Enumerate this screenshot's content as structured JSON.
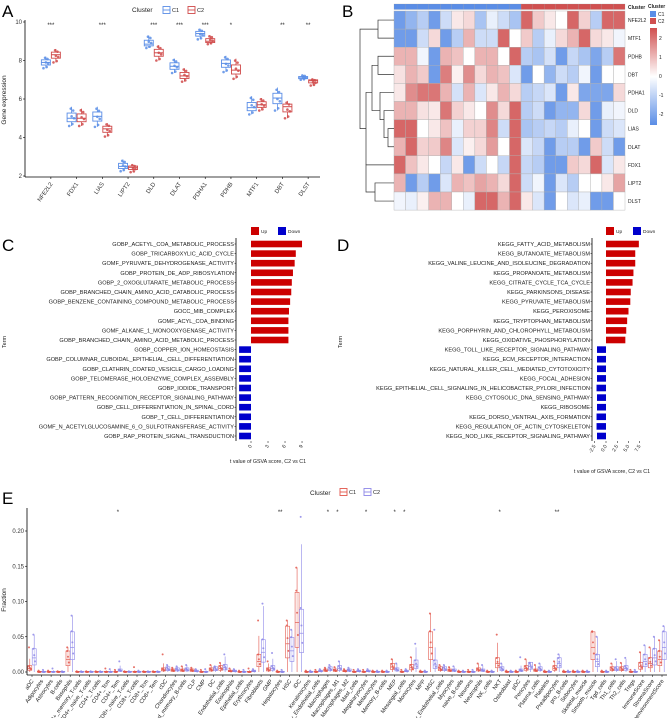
{
  "colors": {
    "a_c1": "#5b8ee6",
    "a_c2": "#d04a4a",
    "e_c1": "#e2574c",
    "e_c2": "#8d87e8",
    "up": "#cc0000",
    "down": "#0000cc",
    "hm_low": "#5a8de6",
    "hm_mid": "#ffffff",
    "hm_high": "#d05050"
  },
  "chart_data": [
    {
      "panel": "A",
      "type": "box",
      "legend_title": "Cluster",
      "legend": [
        "C1",
        "C2"
      ],
      "legend_placement": "top",
      "ylabel": "Gene expression",
      "xlabel": "",
      "ylim": [
        2,
        10
      ],
      "yticks": [
        2,
        4,
        6,
        8,
        10
      ],
      "categories": [
        "NFE2L2",
        "FDX1",
        "LIAS",
        "LIPT2",
        "DLD",
        "DLAT",
        "PDHA1",
        "PDHB",
        "MTF1",
        "DBT",
        "DLST"
      ],
      "series": [
        {
          "name": "C1",
          "median": [
            7.9,
            5.0,
            5.1,
            2.5,
            8.85,
            7.7,
            9.4,
            7.85,
            5.55,
            6.05,
            7.1
          ],
          "min": [
            7.6,
            4.6,
            4.55,
            2.25,
            8.65,
            7.35,
            9.1,
            7.4,
            5.2,
            5.4,
            7.0
          ],
          "max": [
            8.2,
            5.6,
            5.6,
            2.85,
            9.3,
            8.1,
            9.65,
            8.25,
            6.15,
            6.6,
            7.25
          ]
        },
        {
          "name": "C2",
          "median": [
            8.3,
            5.0,
            4.45,
            2.45,
            8.4,
            7.2,
            9.0,
            7.5,
            5.7,
            5.6,
            6.95
          ],
          "min": [
            7.9,
            4.6,
            4.05,
            2.2,
            8.0,
            6.9,
            8.85,
            7.05,
            5.4,
            5.0,
            6.7
          ],
          "max": [
            8.6,
            5.5,
            4.75,
            2.6,
            8.8,
            7.6,
            9.3,
            8.1,
            6.05,
            5.9,
            7.05
          ]
        }
      ],
      "significance": [
        "***",
        "",
        "***",
        "",
        "***",
        "***",
        "***",
        "*",
        "",
        "**",
        "**"
      ]
    },
    {
      "panel": "B",
      "type": "heatmap",
      "rows": [
        "NFE2L2",
        "MTF1",
        "PDHB",
        "DBT",
        "PDHA1",
        "DLD",
        "LIAS",
        "DLAT",
        "FDX1",
        "LIPT2",
        "DLST"
      ],
      "column_clusters": [
        "C1",
        "C1",
        "C1",
        "C1",
        "C1",
        "C1",
        "C1",
        "C1",
        "C1",
        "C1",
        "C1",
        "C2",
        "C2",
        "C2",
        "C2",
        "C2",
        "C2",
        "C2",
        "C2",
        "C2"
      ],
      "annotation_label": "Cluster",
      "legend_title": "Cluster",
      "legend": [
        "C1",
        "C2"
      ],
      "scale_ticks": [
        2,
        1,
        0,
        -1,
        -2
      ],
      "scale_range": [
        -2.5,
        2.5
      ],
      "values": [
        [
          -2,
          -1.5,
          -1,
          -2,
          -0.7,
          0.3,
          0.5,
          -1.2,
          -0.3,
          -0.7,
          -1.2,
          2,
          0.7,
          0.3,
          0,
          2,
          0.6,
          -1,
          2,
          2
        ],
        [
          -2,
          -2,
          -0.7,
          0.5,
          -2,
          -1,
          1,
          -0.7,
          -0.7,
          2,
          0,
          0.7,
          -1,
          -0.3,
          0.5,
          1,
          2,
          0.5,
          0.3,
          -0.2
        ],
        [
          1,
          1,
          -0.2,
          -2,
          1,
          0.8,
          0,
          1,
          1,
          0,
          2,
          -1,
          -1.2,
          -0.6,
          -2,
          -0.8,
          -1.2,
          -1.8,
          -1,
          1.8
        ],
        [
          0.4,
          1,
          0.7,
          -2,
          1.7,
          0.2,
          1.5,
          0.5,
          1,
          0.8,
          -0.5,
          -2,
          0,
          -1.5,
          -0.7,
          -1,
          -0.2,
          -2,
          0,
          0
        ],
        [
          0.3,
          1.5,
          1.8,
          1.8,
          1,
          -0.6,
          1,
          -0.5,
          0.3,
          1,
          0.5,
          -1,
          -0.8,
          -0.5,
          -2,
          0.3,
          -1.8,
          -1.8,
          -1.8,
          0.5
        ],
        [
          1,
          1,
          0.4,
          0.3,
          1.8,
          0.6,
          0.3,
          0,
          1.5,
          0.5,
          2,
          -1,
          -0.7,
          -2,
          -1.5,
          -1.5,
          0.5,
          -2,
          -0.3,
          -0.2
        ],
        [
          2,
          2,
          0,
          0.3,
          0.8,
          -0.3,
          0.6,
          0.6,
          1.6,
          -0.7,
          2,
          -1.2,
          -1,
          -0.8,
          -1,
          -0.3,
          0,
          -2,
          -0.7,
          -0.5
        ],
        [
          1,
          2,
          0.6,
          0.7,
          1.6,
          -0.5,
          0.2,
          0.5,
          1.3,
          0,
          2,
          -0.5,
          -0.8,
          -2,
          -1,
          -1,
          -2,
          0.7,
          -0.7,
          -2
        ],
        [
          2,
          0.8,
          0.3,
          0,
          -0.8,
          0.3,
          -2,
          -0.7,
          0,
          -0.8,
          2,
          -0.8,
          -1,
          -2,
          -2,
          0.7,
          0.5,
          2,
          -0.5,
          0.3
        ],
        [
          1,
          -2,
          -1,
          -2,
          -0.5,
          1,
          0.8,
          1.2,
          1,
          0.5,
          2,
          -0.7,
          -0.2,
          -2,
          -0.5,
          -1,
          0,
          0,
          0.3,
          1.2
        ],
        [
          -0.2,
          -0.3,
          0.2,
          1,
          1,
          0,
          -0.3,
          2,
          2,
          1,
          2,
          0.3,
          -0.5,
          -2,
          0,
          -0.5,
          -0.3,
          -2,
          -2,
          0
        ]
      ]
    },
    {
      "panel": "C",
      "type": "bar",
      "orientation": "horizontal",
      "legend": [
        "Up",
        "Down"
      ],
      "legend_placement": "top-right",
      "xlabel": "t value of GSVA score, C2 vs C1",
      "ylabel": "Term",
      "xticks": [
        0,
        3,
        6,
        9
      ],
      "xlim": [
        -3,
        9.5
      ],
      "categories": [
        "GOBP_ACETYL_COA_METABOLIC_PROCESS",
        "GOBP_TRICARBOXYLIC_ACID_CYCLE",
        "GOMF_PYRUVATE_DEHYDROGENASE_ACTIVITY",
        "GOBP_PROTEIN_DE_ADP_RIBOSYLATION",
        "GOBP_2_OXOGLUTARATE_METABOLIC_PROCESS",
        "GOBP_BRANCHED_CHAIN_AMINO_ACID_CATABOLIC_PROCESS",
        "GOBP_BENZENE_CONTAINING_COMPOUND_METABOLIC_PROCESS",
        "GOCC_MIB_COMPLEX",
        "GOMF_ACYL_COA_BINDING",
        "GOMF_ALKANE_1_MONOOXYGENASE_ACTIVITY",
        "GOBP_BRANCHED_CHAIN_AMINO_ACID_METABOLIC_PROCESS",
        "GOBP_COPPER_ION_HOMEOSTASIS",
        "GOBP_COLUMNAR_CUBOIDAL_EPITHELIAL_CELL_DIFFERENTIATION",
        "GOBP_CLATHRIN_COATED_VESICLE_CARGO_LOADING",
        "GOBP_TELOMERASE_HOLOENZYME_COMPLEX_ASSEMBLY",
        "GOBP_IODIDE_TRANSPORT",
        "GOBP_PATTERN_RECOGNITION_RECEPTOR_SIGNALING_PATHWAY",
        "GOBP_CELL_DIFFERENTIATION_IN_SPINAL_CORD",
        "GOBP_T_CELL_DIFFERENTIATION",
        "GOMF_N_ACETYLGLUCOSAMINE_6_O_SULFOTRANSFERASE_ACTIVITY",
        "GOBP_RAP_PROTEIN_SIGNAL_TRANSDUCTION"
      ],
      "values": [
        9.0,
        7.9,
        7.7,
        7.4,
        7.2,
        7.1,
        6.9,
        6.7,
        6.6,
        6.6,
        6.6,
        -2.1,
        -2.1,
        -2.1,
        -2.1,
        -2.1,
        -2.1,
        -2.1,
        -2.1,
        -2.1,
        -2.1
      ]
    },
    {
      "panel": "D",
      "type": "bar",
      "orientation": "horizontal",
      "legend": [
        "Up",
        "Down"
      ],
      "legend_placement": "top-right",
      "xlabel": "t value of GSVA score, C2 vs C1",
      "ylabel": "Term",
      "xticks": [
        -2.5,
        0.0,
        2.5,
        5.0,
        7.5
      ],
      "xtick_labels": [
        "-2.5",
        "0.0",
        "2.5",
        "5.0",
        "7.5"
      ],
      "xlim": [
        -3,
        8
      ],
      "categories": [
        "KEGG_FATTY_ACID_METABOLISM",
        "KEGG_BUTANOATE_METABOLISM",
        "KEGG_VALINE_LEUCINE_AND_ISOLEUCINE_DEGRADATION",
        "KEGG_PROPANOATE_METABOLISM",
        "KEGG_CITRATE_CYCLE_TCA_CYCLE",
        "KEGG_PARKINSONS_DISEASE",
        "KEGG_PYRUVATE_METABOLISM",
        "KEGG_PEROXISOME",
        "KEGG_TRYPTOPHAN_METABOLISM",
        "KEGG_PORPHYRIN_AND_CHLOROPHYLL_METABOLISM",
        "KEGG_OXIDATIVE_PHOSPHORYLATION",
        "KEGG_TOLL_LIKE_RECEPTOR_SIGNALING_PATHWAY",
        "KEGG_ECM_RECEPTOR_INTERACTION",
        "KEGG_NATURAL_KILLER_CELL_MEDIATED_CYTOTOXICITY",
        "KEGG_FOCAL_ADHESION",
        "KEGG_EPITHELIAL_CELL_SIGNALING_IN_HELICOBACTER_PYLORI_INFECTION",
        "KEGG_CYTOSOLIC_DNA_SENSING_PATHWAY",
        "KEGG_RIBOSOME",
        "KEGG_DORSO_VENTRAL_AXIS_FORMATION",
        "KEGG_REGULATION_OF_ACTIN_CYTOSKELETON",
        "KEGG_NOD_LIKE_RECEPTOR_SIGNALING_PATHWAY"
      ],
      "values": [
        7.3,
        6.5,
        6.5,
        6.1,
        5.9,
        5.5,
        5.4,
        5.0,
        4.7,
        4.5,
        4.3,
        -2.0,
        -2.0,
        -2.0,
        -2.0,
        -2.1,
        -2.0,
        -2.0,
        -2.1,
        -2.1,
        -2.0
      ]
    },
    {
      "panel": "E",
      "type": "box",
      "legend_title": "Cluster",
      "legend": [
        "C1",
        "C2"
      ],
      "legend_placement": "top",
      "ylabel": "Fraction",
      "ylim": [
        0,
        0.23
      ],
      "yticks": [
        0.0,
        0.05,
        0.1,
        0.15,
        0.2
      ],
      "ytick_labels": [
        "0.00",
        "0.05",
        "0.10",
        "0.15",
        "0.20"
      ],
      "categories": [
        "aDC",
        "Adipocytes",
        "Astrocytes",
        "B-cells",
        "Basophils",
        "CD4+_memory_T-cells",
        "CD4+_naive_T-cells",
        "CD4+_T-cells",
        "CD4+_Tcm",
        "CD4+_Tem",
        "CD8+_naive_T-cells",
        "CD8+_T-cells",
        "CD8+_Tcm",
        "CD8+_Tem",
        "cDC",
        "Chondrocytes",
        "Class-switched_memory_B-cells",
        "CLP",
        "CMP",
        "DC",
        "Endothelial_cells",
        "Eosinophils",
        "Epithelial_cells",
        "Erythrocytes",
        "Fibroblasts",
        "GMP",
        "Hepatocytes",
        "HSC",
        "iDC",
        "Keratinocytes",
        "ly_Endothelial_cells",
        "Macrophages",
        "Macrophages_M1",
        "Macrophages_M2",
        "Mast_cells",
        "Megakaryocytes",
        "Melanocytes",
        "Memory_B-cells",
        "MEP",
        "Mesangial_cells",
        "Monocytes",
        "MPP",
        "MSC",
        "mv_Endothelial_cells",
        "Myocytes",
        "naive_B-cells",
        "Neurons",
        "Neutrophils",
        "NK_cells",
        "NKT",
        "Osteoblast",
        "pDC",
        "Pericytes",
        "Plasma_cells",
        "Platelets",
        "Preadipocytes",
        "pro_B-cells",
        "Sebocytes",
        "Skeletal_muscle",
        "Smooth_muscle",
        "Tgd_cells",
        "Th1_cells",
        "Th2_cells",
        "Tregs",
        "ImmuneScore",
        "StromaScore",
        "MicroenvironmentScore"
      ],
      "series": [
        {
          "name": "C1",
          "median": [
            0.005,
            0,
            0,
            0,
            0.018,
            0,
            0,
            0,
            0,
            0,
            0,
            0,
            0,
            0,
            0.003,
            0.002,
            0.002,
            0.002,
            0,
            0.003,
            0.005,
            0.001,
            0,
            0,
            0.015,
            0.003,
            0,
            0.04,
            0.07,
            0,
            0,
            0.002,
            0.002,
            0.001,
            0,
            0,
            0,
            0,
            0.007,
            0,
            0.006,
            0,
            0.035,
            0.004,
            0.002,
            0,
            0,
            0.003,
            0,
            0.012,
            0,
            0,
            0.005,
            0.002,
            0,
            0.005,
            0,
            0,
            0,
            0.035,
            0,
            0.004,
            0.004,
            0,
            0.008,
            0.012,
            0.018
          ],
          "max": [
            0.035,
            0.002,
            0.002,
            0.001,
            0.035,
            0.001,
            0.001,
            0.001,
            0.005,
            0.003,
            0.001,
            0.007,
            0.001,
            0.001,
            0.025,
            0.006,
            0.008,
            0.006,
            0.003,
            0.01,
            0.013,
            0.005,
            0.002,
            0.005,
            0.073,
            0.015,
            0.002,
            0.073,
            0.148,
            0.002,
            0.003,
            0.006,
            0.007,
            0.004,
            0.003,
            0.003,
            0.002,
            0.002,
            0.018,
            0.003,
            0.021,
            0.002,
            0.083,
            0.01,
            0.007,
            0.002,
            0.003,
            0.012,
            0.002,
            0.053,
            0.002,
            0.002,
            0.018,
            0.01,
            0.002,
            0.015,
            0.002,
            0.002,
            0.002,
            0.057,
            0.002,
            0.012,
            0.013,
            0.003,
            0.028,
            0.035,
            0.045
          ]
        },
        {
          "name": "C2",
          "median": [
            0.02,
            0,
            0,
            0,
            0.035,
            0,
            0,
            0,
            0,
            0.002,
            0,
            0,
            0,
            0,
            0.004,
            0.003,
            0.003,
            0.001,
            0,
            0.004,
            0.006,
            0.001,
            0,
            0.001,
            0.028,
            0.005,
            0,
            0.03,
            0.055,
            0,
            0.001,
            0.004,
            0.005,
            0.002,
            0.001,
            0.001,
            0,
            0,
            0.003,
            0.001,
            0.01,
            0,
            0.01,
            0.004,
            0.002,
            0,
            0,
            0.002,
            0,
            0.004,
            0,
            0.002,
            0.008,
            0.004,
            0,
            0.012,
            0,
            0,
            0,
            0.015,
            0,
            0.004,
            0.005,
            0,
            0.015,
            0.02,
            0.035
          ],
          "max": [
            0.053,
            0.003,
            0.005,
            0.001,
            0.08,
            0.001,
            0.001,
            0.001,
            0.004,
            0.015,
            0.001,
            0.002,
            0.001,
            0.001,
            0.01,
            0.008,
            0.01,
            0.004,
            0.004,
            0.008,
            0.025,
            0.004,
            0.003,
            0.004,
            0.097,
            0.027,
            0.003,
            0.06,
            0.22,
            0.002,
            0.004,
            0.01,
            0.015,
            0.006,
            0.004,
            0.004,
            0.002,
            0.002,
            0.012,
            0.004,
            0.04,
            0.002,
            0.06,
            0.01,
            0.008,
            0.002,
            0.003,
            0.01,
            0.002,
            0.012,
            0.002,
            0.021,
            0.012,
            0.012,
            0.002,
            0.025,
            0.002,
            0.002,
            0.002,
            0.05,
            0.002,
            0.018,
            0.02,
            0.003,
            0.038,
            0.05,
            0.065
          ]
        }
      ],
      "significance": [
        "",
        "",
        "",
        "",
        "",
        "",
        "",
        "",
        "",
        "*",
        "",
        "",
        "",
        "",
        "",
        "",
        "",
        "",
        "",
        "",
        "",
        "",
        "",
        "",
        "",
        "",
        "**",
        "",
        "",
        "",
        "",
        "*",
        "*",
        "",
        "",
        "*",
        "",
        "",
        "*",
        "*",
        "",
        "",
        "",
        "",
        "",
        "",
        "",
        "",
        "",
        "*",
        "",
        "",
        "",
        "",
        "",
        "**",
        "",
        "",
        "",
        "",
        "",
        "",
        "",
        "",
        "",
        "",
        ""
      ]
    }
  ],
  "panel_labels": [
    "A",
    "B",
    "C",
    "D",
    "E"
  ]
}
